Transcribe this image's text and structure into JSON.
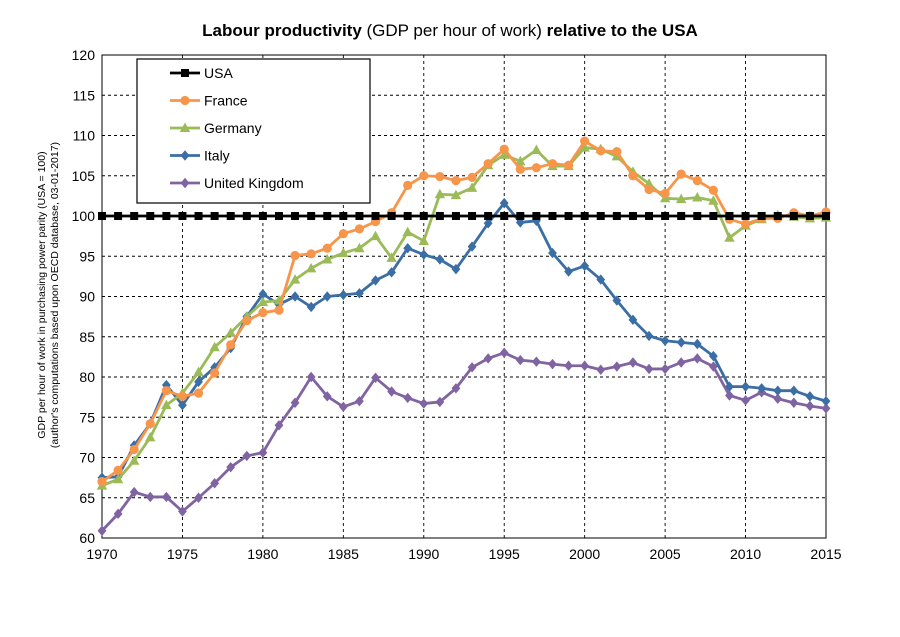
{
  "chart_data": {
    "type": "line",
    "title": {
      "bold_1": "Labour productivity",
      "normal": " (GDP per hour of work) ",
      "bold_2": "relative to the USA"
    },
    "ylabel": {
      "line1": "GDP per hour of work in purchasing power parity (USA = 100)",
      "line2": "(author's computations based upon OECD database, 03-01-2017)"
    },
    "xlabel": "",
    "xlim": [
      1970,
      2015
    ],
    "ylim": [
      60,
      120
    ],
    "x_ticks": [
      1970,
      1975,
      1980,
      1985,
      1990,
      1995,
      2000,
      2005,
      2010,
      2015
    ],
    "y_ticks": [
      60,
      65,
      70,
      75,
      80,
      85,
      90,
      95,
      100,
      105,
      110,
      115,
      120
    ],
    "x": [
      1970,
      1971,
      1972,
      1973,
      1974,
      1975,
      1976,
      1977,
      1978,
      1979,
      1980,
      1981,
      1982,
      1983,
      1984,
      1985,
      1986,
      1987,
      1988,
      1989,
      1990,
      1991,
      1992,
      1993,
      1994,
      1995,
      1996,
      1997,
      1998,
      1999,
      2000,
      2001,
      2002,
      2003,
      2004,
      2005,
      2006,
      2007,
      2008,
      2009,
      2010,
      2011,
      2012,
      2013,
      2014,
      2015
    ],
    "legend_position": "top-left",
    "series": [
      {
        "name": "USA",
        "color": "#000000",
        "marker": "square",
        "values": [
          100,
          100,
          100,
          100,
          100,
          100,
          100,
          100,
          100,
          100,
          100,
          100,
          100,
          100,
          100,
          100,
          100,
          100,
          100,
          100,
          100,
          100,
          100,
          100,
          100,
          100,
          100,
          100,
          100,
          100,
          100,
          100,
          100,
          100,
          100,
          100,
          100,
          100,
          100,
          100,
          100,
          100,
          100,
          100,
          100,
          100
        ]
      },
      {
        "name": "France",
        "color": "#F7964A",
        "marker": "circle",
        "values": [
          67.0,
          68.4,
          71.0,
          74.2,
          78.3,
          77.6,
          78.0,
          80.5,
          84.0,
          87.0,
          88.0,
          88.3,
          95.1,
          95.3,
          96.0,
          97.8,
          98.4,
          99.3,
          100.4,
          103.8,
          105.0,
          104.9,
          104.4,
          104.8,
          106.5,
          108.3,
          105.8,
          106.0,
          106.5,
          106.3,
          109.3,
          108.1,
          108.0,
          105.0,
          103.3,
          102.8,
          105.2,
          104.4,
          103.2,
          99.6,
          99.0,
          99.7,
          99.7,
          100.4,
          100.0,
          100.5
        ]
      },
      {
        "name": "Germany",
        "color": "#9BBB59",
        "marker": "triangle",
        "values": [
          66.5,
          67.3,
          69.6,
          72.5,
          76.5,
          78.0,
          80.6,
          83.7,
          85.5,
          87.5,
          89.3,
          89.5,
          92.1,
          93.5,
          94.6,
          95.4,
          96.0,
          97.5,
          94.8,
          98.0,
          96.9,
          102.7,
          102.6,
          103.5,
          106.3,
          107.6,
          106.8,
          108.2,
          106.2,
          106.2,
          108.5,
          108.3,
          107.4,
          105.5,
          104.0,
          102.2,
          102.1,
          102.3,
          101.9,
          97.3,
          98.8,
          99.6,
          100.1,
          99.9,
          99.7,
          99.8
        ]
      },
      {
        "name": "Italy",
        "color": "#3A6EA5",
        "marker": "diamond",
        "values": [
          67.5,
          67.6,
          71.5,
          74.2,
          79.0,
          76.5,
          79.4,
          81.2,
          83.6,
          87.5,
          90.3,
          89.0,
          90.0,
          88.7,
          90.0,
          90.2,
          90.4,
          92.0,
          93.0,
          96.0,
          95.2,
          94.6,
          93.4,
          96.2,
          99.1,
          101.6,
          99.2,
          99.4,
          95.4,
          93.1,
          93.8,
          92.1,
          89.5,
          87.1,
          85.1,
          84.5,
          84.3,
          84.1,
          82.6,
          78.8,
          78.8,
          78.6,
          78.3,
          78.3,
          77.6,
          77.0
        ]
      },
      {
        "name": "United Kingdom",
        "color": "#8064A2",
        "marker": "diamond",
        "values": [
          60.9,
          63.0,
          65.7,
          65.1,
          65.1,
          63.3,
          65.0,
          66.8,
          68.8,
          70.2,
          70.6,
          74.0,
          76.8,
          80.0,
          77.6,
          76.3,
          77.0,
          79.9,
          78.2,
          77.4,
          76.7,
          76.9,
          78.6,
          81.2,
          82.3,
          83.0,
          82.1,
          81.9,
          81.6,
          81.4,
          81.4,
          80.9,
          81.3,
          81.8,
          81.0,
          81.0,
          81.8,
          82.3,
          81.3,
          77.7,
          77.1,
          78.1,
          77.3,
          76.8,
          76.4,
          76.1
        ]
      }
    ]
  }
}
